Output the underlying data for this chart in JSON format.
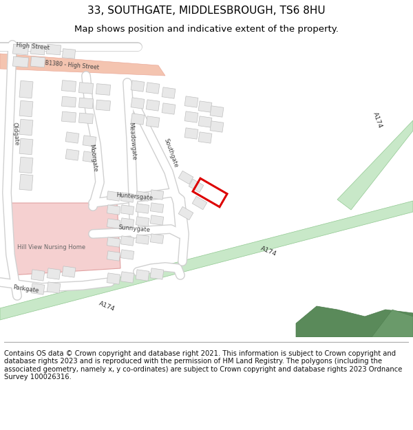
{
  "title_line1": "33, SOUTHGATE, MIDDLESBROUGH, TS6 8HU",
  "title_line2": "Map shows position and indicative extent of the property.",
  "footer_text": "Contains OS data © Crown copyright and database right 2021. This information is subject to Crown copyright and database rights 2023 and is reproduced with the permission of HM Land Registry. The polygons (including the associated geometry, namely x, y co-ordinates) are subject to Crown copyright and database rights 2023 Ordnance Survey 100026316.",
  "bg_color": "#ffffff",
  "map_bg": "#ffffff",
  "b_road_fill": "#f4c4b0",
  "b_road_edge": "#e8a090",
  "a_road_fill": "#c8e8c8",
  "a_road_edge": "#90c890",
  "building_fill": "#e8e8e8",
  "building_edge": "#c0c0c0",
  "nursing_fill": "#f5d0d0",
  "nursing_edge": "#e0a0a0",
  "plot_edge": "#dd0000",
  "tree_fill": "#5a8a5a",
  "road_fill": "#ffffff",
  "road_edge": "#d0d0d0",
  "title_fs": 11,
  "subtitle_fs": 9.5,
  "footer_fs": 7.2,
  "label_fs": 6.2,
  "road_label_fs": 6.8
}
